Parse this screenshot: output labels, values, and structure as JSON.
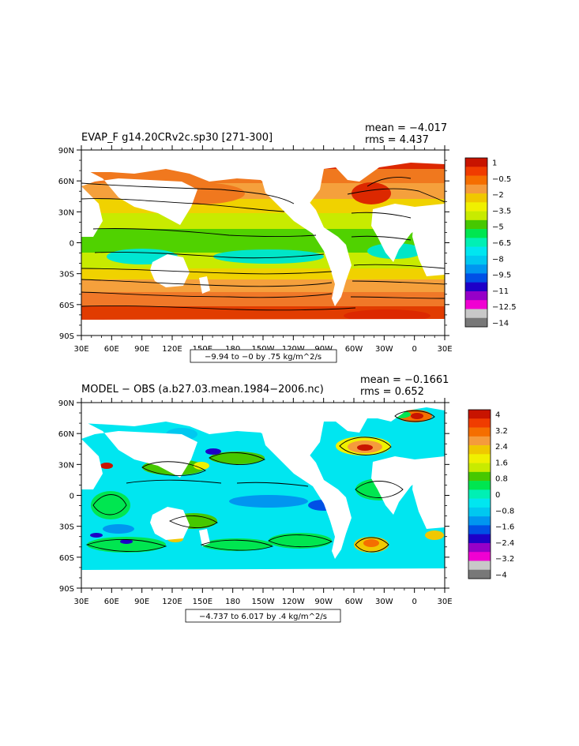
{
  "panels": [
    {
      "title": "EVAP_F g14.20CRv2c.sp30 [271-300]",
      "mean": "mean = −4.017",
      "rms": "rms = 4.437",
      "range_label": "−9.94 to −0 by .75 kg/m^2/s",
      "colorbar": {
        "labels": [
          "1",
          "−0.5",
          "−2",
          "−3.5",
          "−5",
          "−6.5",
          "−8",
          "−9.5",
          "−11",
          "−12.5",
          "−14"
        ],
        "colors": [
          "#c81400",
          "#f03c00",
          "#f56e00",
          "#f59b3c",
          "#f0c800",
          "#f0f000",
          "#c8eb00",
          "#46c800",
          "#00e650",
          "#00f0b4",
          "#00e6f0",
          "#00c8f0",
          "#0096f0",
          "#0050e6",
          "#1e00c8",
          "#9600c8",
          "#f000d2",
          "#c8c8c8",
          "#787878"
        ]
      }
    },
    {
      "title": "MODEL − OBS (a.b27.03.mean.1984−2006.nc)",
      "mean": "mean = −0.1661",
      "rms": "rms = 0.652",
      "range_label": "−4.737 to 6.017 by .4 kg/m^2/s",
      "colorbar": {
        "labels": [
          "4",
          "3.2",
          "2.4",
          "1.6",
          "0.8",
          "0",
          "−0.8",
          "−1.6",
          "−2.4",
          "−3.2",
          "−4"
        ],
        "colors": [
          "#c81400",
          "#f03c00",
          "#f56e00",
          "#f59b3c",
          "#f0c800",
          "#f0f000",
          "#c8eb00",
          "#46c800",
          "#00e650",
          "#00f0b4",
          "#00e6f0",
          "#00c8f0",
          "#0096f0",
          "#0050e6",
          "#1e00c8",
          "#9600c8",
          "#f000d2",
          "#c8c8c8",
          "#787878"
        ]
      }
    }
  ],
  "lat_ticks": [
    "90N",
    "60N",
    "30N",
    "0",
    "30S",
    "60S",
    "90S"
  ],
  "lon_ticks": [
    "30E",
    "60E",
    "90E",
    "120E",
    "150E",
    "180",
    "150W",
    "120W",
    "90W",
    "60W",
    "30W",
    "0",
    "30E"
  ]
}
